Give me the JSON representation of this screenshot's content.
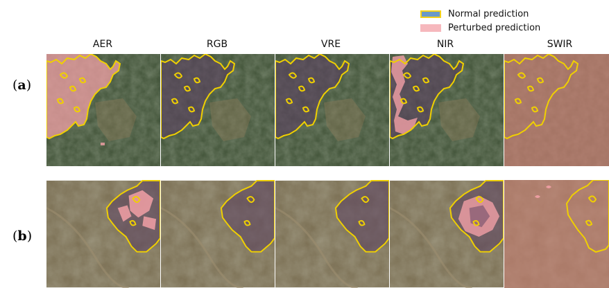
{
  "legend": {
    "normal_label": "Normal prediction",
    "perturbed_label": "Perturbed prediction",
    "normal_fill": "#6a99c9",
    "normal_border": "#f4d21a",
    "perturbed_fill": "#f6b8bd"
  },
  "columns": [
    "AER",
    "RGB",
    "VRE",
    "NIR",
    "SWIR"
  ],
  "rows": [
    {
      "open": "(",
      "letter": "a",
      "close": ")"
    },
    {
      "open": "(",
      "letter": "b",
      "close": ")"
    }
  ],
  "colors": {
    "outline": "#f0d000",
    "perturbed_overlay": "#f2a0a6",
    "burn_tint": "#5a3f60",
    "terrain_a": "#3f5136",
    "terrain_b": "#7a6e52",
    "swir_tint": "#c98074"
  }
}
